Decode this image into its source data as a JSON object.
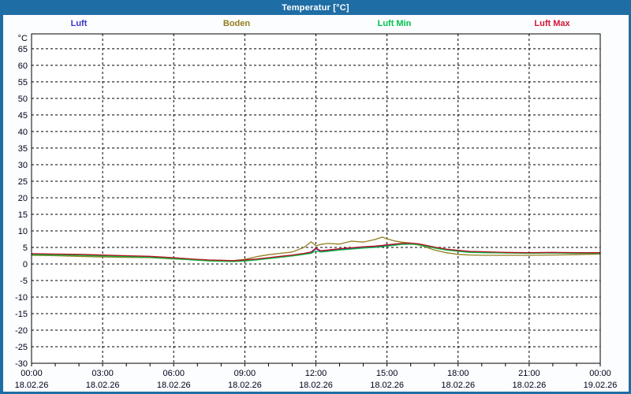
{
  "window": {
    "title": "Temperatur [°C]",
    "titlebar_color": "#1f6da5",
    "border_color": "#1f6da5",
    "background": "#fcfdfe"
  },
  "legend": {
    "items": [
      {
        "label": "Luft",
        "color": "#3a35c8"
      },
      {
        "label": "Boden",
        "color": "#937d1e"
      },
      {
        "label": "Luft Min",
        "color": "#00c24e"
      },
      {
        "label": "Luft Max",
        "color": "#d01638"
      }
    ]
  },
  "chart_data": {
    "type": "line",
    "title": "Temperatur [°C]",
    "ylabel": "°C",
    "ylim": [
      -30,
      69.5
    ],
    "yticks": [
      65,
      60,
      55,
      50,
      45,
      40,
      35,
      30,
      25,
      20,
      15,
      10,
      5,
      0,
      -5,
      -10,
      -15,
      -20,
      -25,
      -30
    ],
    "xlim": [
      0,
      24
    ],
    "minor_x_step_hours": 1,
    "grid": "dashed",
    "legend_position": "top",
    "axis_color": "#000000",
    "text_color": "#00001a",
    "xticks": [
      {
        "hour": 0,
        "time": "00:00",
        "date": "18.02.26"
      },
      {
        "hour": 3,
        "time": "03:00",
        "date": "18.02.26"
      },
      {
        "hour": 6,
        "time": "06:00",
        "date": "18.02.26"
      },
      {
        "hour": 9,
        "time": "09:00",
        "date": "18.02.26"
      },
      {
        "hour": 12,
        "time": "12:00",
        "date": "18.02.26"
      },
      {
        "hour": 15,
        "time": "15:00",
        "date": "18.02.26"
      },
      {
        "hour": 18,
        "time": "18:00",
        "date": "18.02.26"
      },
      {
        "hour": 21,
        "time": "21:00",
        "date": "18.02.26"
      },
      {
        "hour": 24,
        "time": "00:00",
        "date": "19.02.26"
      }
    ],
    "x_hours": [
      0,
      1,
      2,
      3,
      4,
      5,
      6,
      7,
      7.5,
      8,
      8.5,
      9,
      9.5,
      10,
      10.5,
      11,
      11.5,
      11.8,
      12,
      12.2,
      12.5,
      13,
      13.5,
      14,
      14.5,
      14.8,
      15,
      15.3,
      15.6,
      16,
      16.3,
      16.6,
      17,
      17.5,
      18,
      18.5,
      19,
      20,
      21,
      22,
      23,
      24
    ],
    "series": [
      {
        "name": "Luft",
        "color": "#3a35c8",
        "values": [
          2.9,
          2.8,
          2.7,
          2.5,
          2.3,
          2.1,
          1.7,
          1.2,
          1.0,
          0.9,
          0.8,
          1.0,
          1.3,
          1.7,
          2.1,
          2.5,
          3.0,
          3.4,
          4.6,
          3.8,
          4.0,
          4.4,
          4.7,
          5.0,
          5.2,
          5.4,
          5.6,
          5.8,
          6.0,
          6.1,
          5.9,
          5.5,
          4.9,
          4.3,
          3.9,
          3.6,
          3.5,
          3.4,
          3.3,
          3.4,
          3.3,
          3.3
        ]
      },
      {
        "name": "Boden",
        "color": "#937d1e",
        "values": [
          2.6,
          2.5,
          2.3,
          2.1,
          2.0,
          1.9,
          1.5,
          1.2,
          1.1,
          1.0,
          1.0,
          1.4,
          2.2,
          2.8,
          3.2,
          3.6,
          5.0,
          6.7,
          5.5,
          5.9,
          6.2,
          6.0,
          6.9,
          6.6,
          7.4,
          8.1,
          7.6,
          7.0,
          6.6,
          6.3,
          5.8,
          5.2,
          4.2,
          3.4,
          2.9,
          2.7,
          2.6,
          2.6,
          2.6,
          2.7,
          2.8,
          3.0
        ]
      },
      {
        "name": "Luft Min",
        "color": "#10b944",
        "values": [
          2.8,
          2.7,
          2.6,
          2.4,
          2.2,
          2.0,
          1.6,
          1.1,
          0.9,
          0.8,
          0.7,
          0.9,
          1.2,
          1.6,
          2.0,
          2.4,
          2.9,
          3.2,
          3.9,
          3.6,
          3.8,
          4.2,
          4.5,
          4.8,
          5.0,
          5.2,
          5.4,
          5.6,
          5.9,
          6.0,
          5.8,
          5.4,
          4.8,
          4.2,
          3.8,
          3.5,
          3.4,
          3.3,
          3.2,
          3.3,
          3.2,
          3.2
        ]
      },
      {
        "name": "Luft Max",
        "color": "#b5121f",
        "values": [
          3.1,
          3.0,
          2.9,
          2.7,
          2.5,
          2.3,
          1.9,
          1.4,
          1.2,
          1.1,
          1.0,
          1.2,
          1.5,
          1.9,
          2.3,
          2.7,
          3.2,
          3.6,
          4.8,
          4.0,
          4.2,
          4.6,
          4.9,
          5.2,
          5.4,
          5.6,
          5.8,
          6.0,
          6.2,
          6.3,
          6.1,
          5.7,
          5.1,
          4.5,
          4.1,
          3.8,
          3.7,
          3.5,
          3.4,
          3.5,
          3.4,
          3.4
        ]
      }
    ]
  }
}
